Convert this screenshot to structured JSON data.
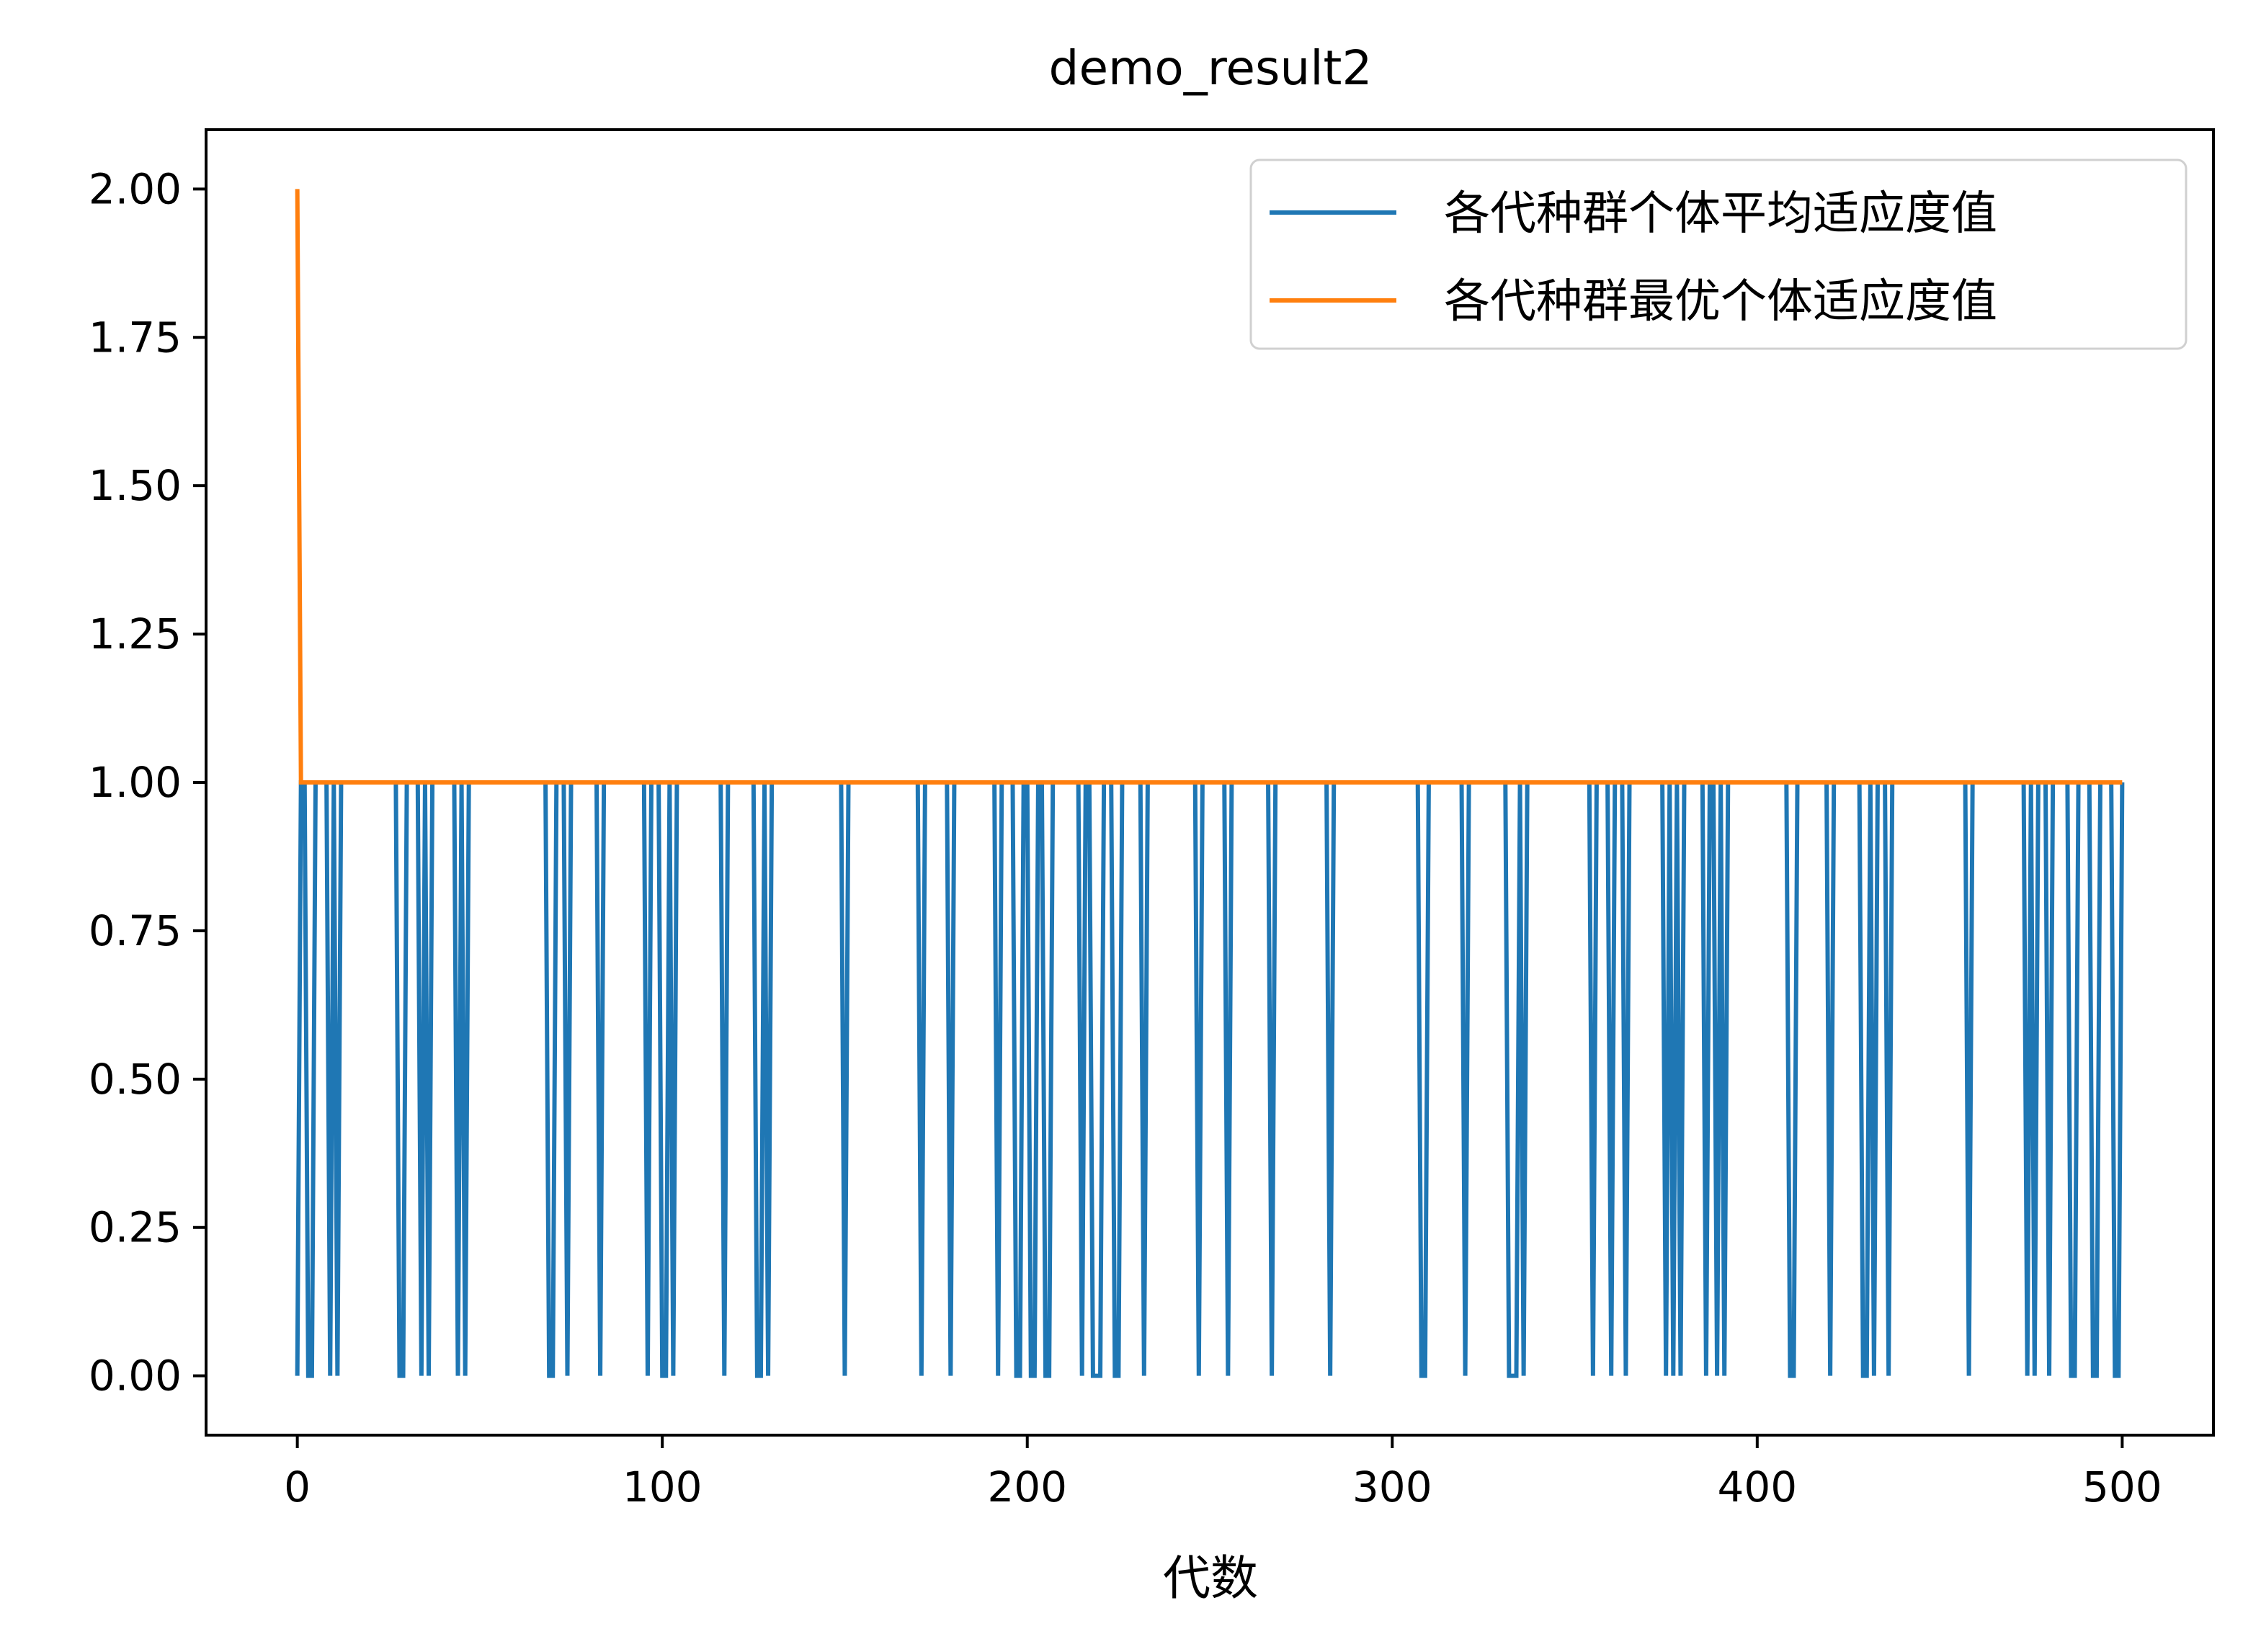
{
  "chart_data": {
    "type": "line",
    "title": "demo_result2",
    "xlabel": "代数",
    "ylabel": "",
    "xlim": [
      -25,
      525
    ],
    "ylim": [
      -0.1,
      2.1
    ],
    "xticks": [
      0,
      100,
      200,
      300,
      400,
      500
    ],
    "xtick_labels": [
      "0",
      "100",
      "200",
      "300",
      "400",
      "500"
    ],
    "yticks": [
      0,
      0.25,
      0.5,
      0.75,
      1.0,
      1.25,
      1.5,
      1.75,
      2.0
    ],
    "ytick_labels": [
      "0.00",
      "0.25",
      "0.50",
      "0.75",
      "1.00",
      "1.25",
      "1.50",
      "1.75",
      "2.00"
    ],
    "grid": false,
    "legend_position": "top-right",
    "n_generations": 500,
    "series": [
      {
        "name": "各代种群个体平均适应度值",
        "color": "#1f77b4",
        "baseline": 1.0,
        "zero_at": [
          0,
          3,
          4,
          9,
          11,
          28,
          29,
          34,
          36,
          44,
          46,
          69,
          70,
          74,
          83,
          96,
          100,
          101,
          103,
          117,
          126,
          127,
          129,
          150,
          171,
          179,
          192,
          197,
          198,
          201,
          202,
          205,
          206,
          215,
          218,
          219,
          220,
          224,
          225,
          232,
          247,
          255,
          267,
          283,
          308,
          309,
          320,
          332,
          333,
          334,
          336,
          355,
          360,
          364,
          375,
          377,
          379,
          386,
          389,
          391,
          409,
          410,
          420,
          429,
          430,
          432,
          436,
          458,
          474,
          476,
          480,
          486,
          487,
          492,
          493,
          498,
          499
        ]
      },
      {
        "name": "各代种群最优个体适应度值",
        "color": "#ff7f0e",
        "start_value": 2.0,
        "value": 1.0
      }
    ]
  }
}
